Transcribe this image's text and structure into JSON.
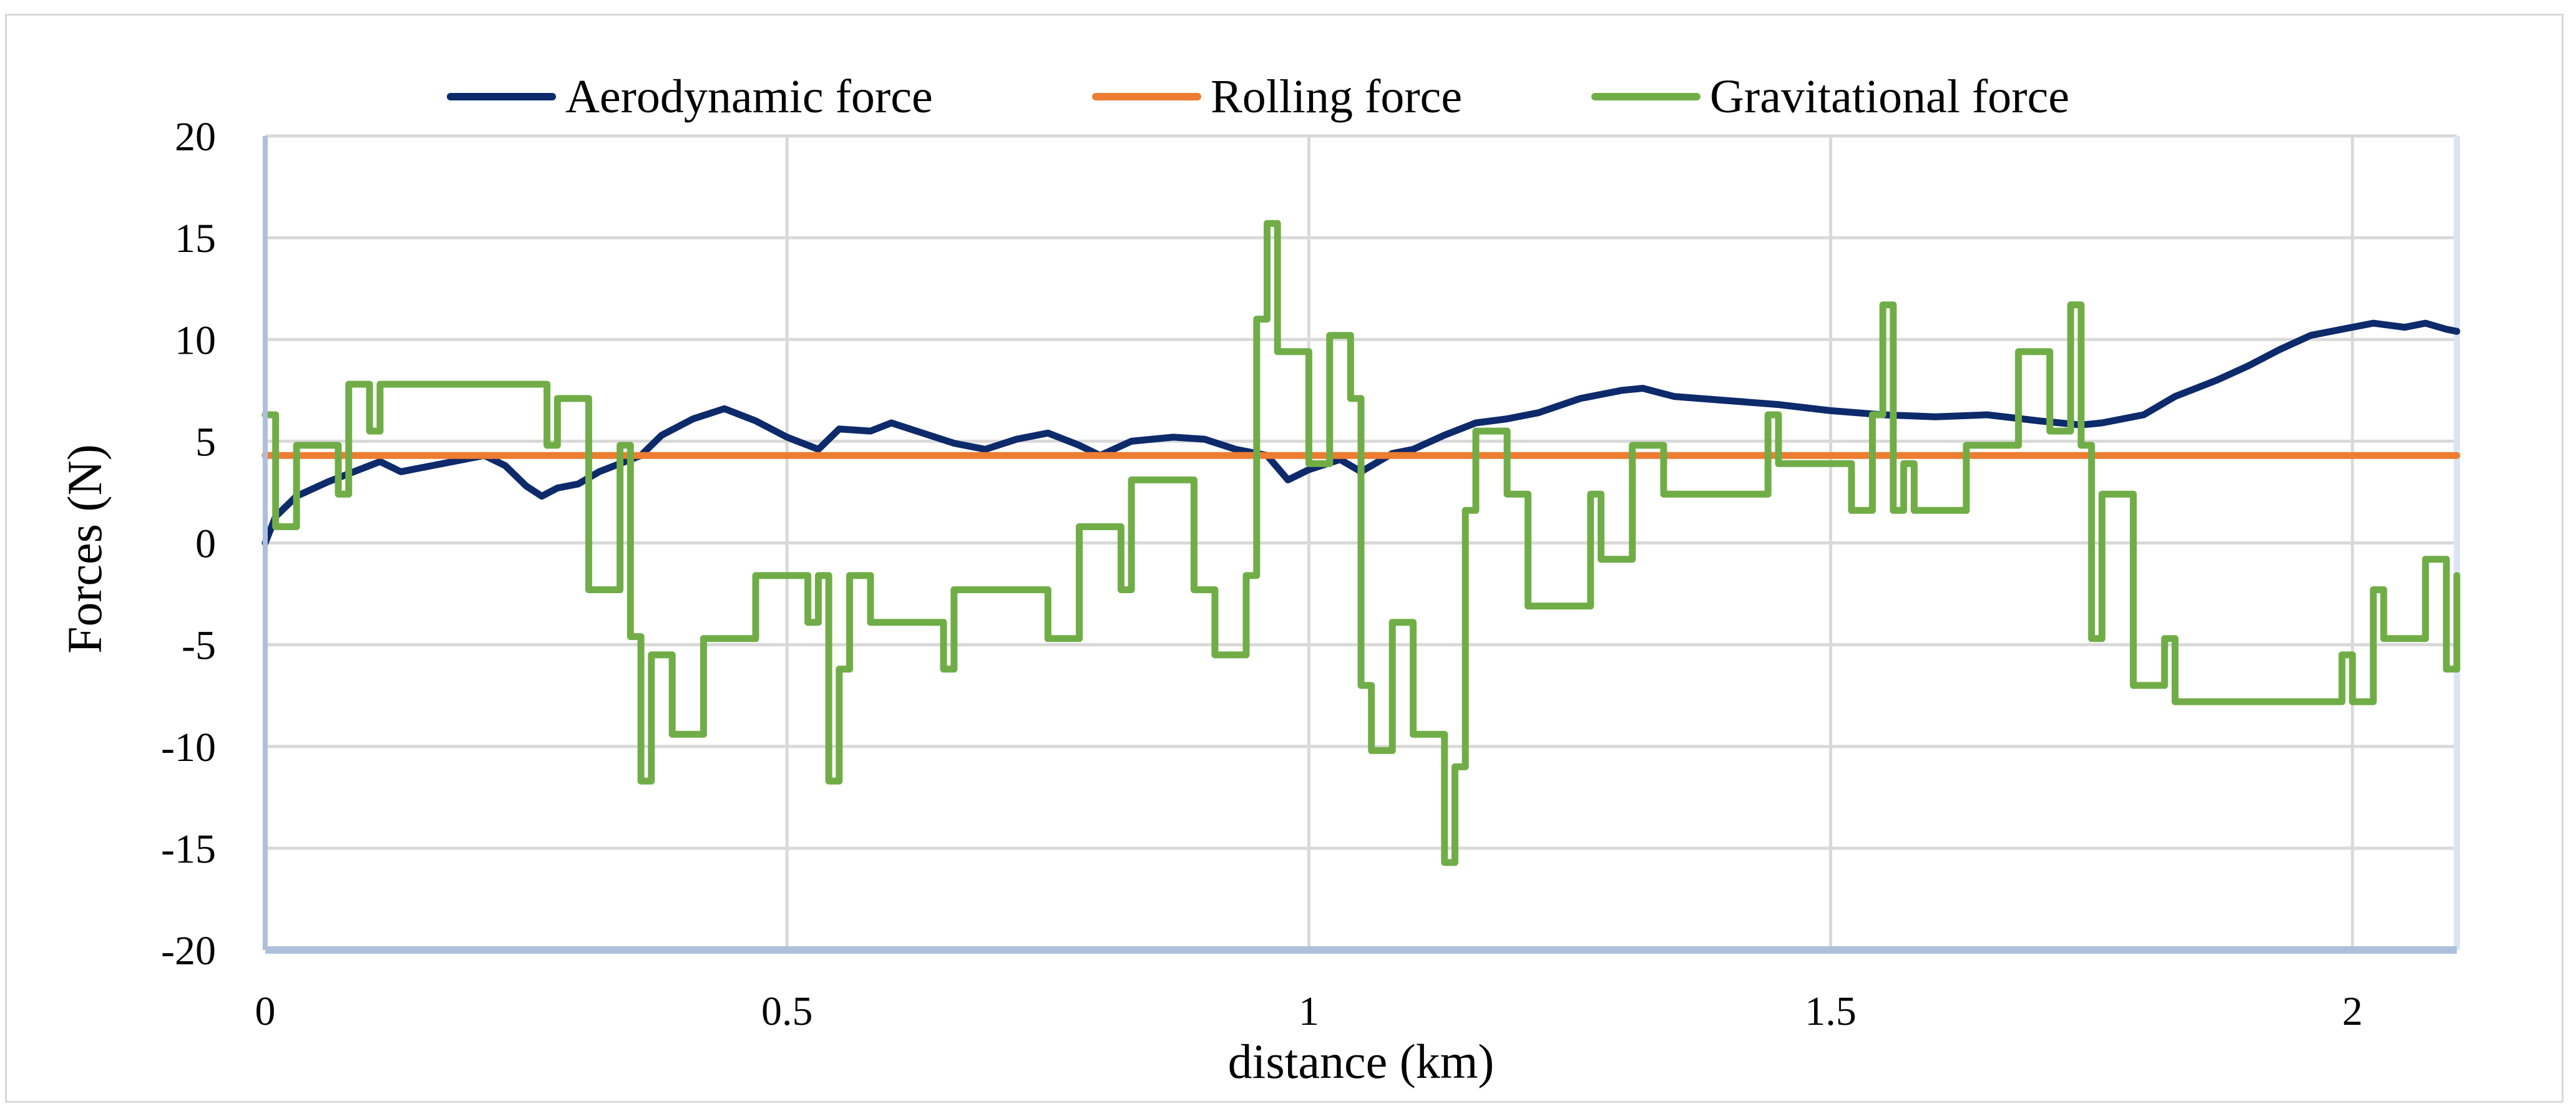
{
  "chart_data": {
    "type": "line",
    "xlabel": "distance (km)",
    "ylabel": "Forces (N)",
    "xlim": [
      0,
      2.1
    ],
    "ylim": [
      -20,
      20
    ],
    "x_ticks": [
      0,
      0.5,
      1,
      1.5,
      2
    ],
    "x_tick_labels": [
      "0",
      "0.5",
      "1",
      "1.5",
      "2"
    ],
    "y_ticks": [
      -20,
      -15,
      -10,
      -5,
      0,
      5,
      10,
      15,
      20
    ],
    "y_tick_labels": [
      "-20",
      "-15",
      "-10",
      "-5",
      "0",
      "5",
      "10",
      "15",
      "20"
    ],
    "grid": true,
    "legend_position": "top",
    "series": [
      {
        "name": "Aerodynamic force",
        "color": "#0d2a6b",
        "step": false,
        "points": [
          [
            0,
            0
          ],
          [
            0.01,
            1.3
          ],
          [
            0.03,
            2.3
          ],
          [
            0.06,
            3.0
          ],
          [
            0.09,
            3.6
          ],
          [
            0.11,
            4.0
          ],
          [
            0.13,
            3.5
          ],
          [
            0.16,
            3.8
          ],
          [
            0.19,
            4.1
          ],
          [
            0.21,
            4.3
          ],
          [
            0.23,
            3.8
          ],
          [
            0.25,
            2.8
          ],
          [
            0.265,
            2.3
          ],
          [
            0.28,
            2.7
          ],
          [
            0.3,
            2.9
          ],
          [
            0.32,
            3.5
          ],
          [
            0.34,
            3.9
          ],
          [
            0.36,
            4.3
          ],
          [
            0.38,
            5.3
          ],
          [
            0.41,
            6.1
          ],
          [
            0.44,
            6.6
          ],
          [
            0.47,
            6.0
          ],
          [
            0.5,
            5.2
          ],
          [
            0.53,
            4.6
          ],
          [
            0.55,
            5.6
          ],
          [
            0.58,
            5.5
          ],
          [
            0.6,
            5.9
          ],
          [
            0.63,
            5.4
          ],
          [
            0.66,
            4.9
          ],
          [
            0.69,
            4.6
          ],
          [
            0.72,
            5.1
          ],
          [
            0.75,
            5.4
          ],
          [
            0.78,
            4.8
          ],
          [
            0.8,
            4.3
          ],
          [
            0.83,
            5.0
          ],
          [
            0.87,
            5.2
          ],
          [
            0.9,
            5.1
          ],
          [
            0.93,
            4.6
          ],
          [
            0.96,
            4.3
          ],
          [
            0.98,
            3.1
          ],
          [
            1.0,
            3.6
          ],
          [
            1.03,
            4.1
          ],
          [
            1.05,
            3.5
          ],
          [
            1.08,
            4.4
          ],
          [
            1.1,
            4.6
          ],
          [
            1.13,
            5.3
          ],
          [
            1.16,
            5.9
          ],
          [
            1.19,
            6.1
          ],
          [
            1.22,
            6.4
          ],
          [
            1.26,
            7.1
          ],
          [
            1.3,
            7.5
          ],
          [
            1.32,
            7.6
          ],
          [
            1.35,
            7.2
          ],
          [
            1.4,
            7.0
          ],
          [
            1.45,
            6.8
          ],
          [
            1.5,
            6.5
          ],
          [
            1.55,
            6.3
          ],
          [
            1.6,
            6.2
          ],
          [
            1.65,
            6.3
          ],
          [
            1.7,
            6.0
          ],
          [
            1.74,
            5.8
          ],
          [
            1.76,
            5.9
          ],
          [
            1.8,
            6.3
          ],
          [
            1.83,
            7.2
          ],
          [
            1.87,
            8.0
          ],
          [
            1.9,
            8.7
          ],
          [
            1.93,
            9.5
          ],
          [
            1.96,
            10.2
          ],
          [
            1.99,
            10.5
          ],
          [
            2.02,
            10.8
          ],
          [
            2.05,
            10.6
          ],
          [
            2.07,
            10.8
          ],
          [
            2.09,
            10.5
          ],
          [
            2.1,
            10.4
          ]
        ]
      },
      {
        "name": "Rolling force",
        "color": "#ed7d31",
        "step": false,
        "points": [
          [
            0,
            4.3
          ],
          [
            2.1,
            4.3
          ]
        ]
      },
      {
        "name": "Gravitational force",
        "color": "#70ad47",
        "step": true,
        "points": [
          [
            0,
            6.3
          ],
          [
            0.01,
            0.8
          ],
          [
            0.03,
            4.8
          ],
          [
            0.07,
            2.4
          ],
          [
            0.08,
            7.8
          ],
          [
            0.1,
            5.5
          ],
          [
            0.11,
            7.8
          ],
          [
            0.27,
            4.8
          ],
          [
            0.28,
            7.1
          ],
          [
            0.31,
            -2.3
          ],
          [
            0.34,
            4.8
          ],
          [
            0.35,
            -4.6
          ],
          [
            0.36,
            -11.7
          ],
          [
            0.37,
            -5.5
          ],
          [
            0.39,
            -9.4
          ],
          [
            0.42,
            -4.7
          ],
          [
            0.47,
            -1.6
          ],
          [
            0.52,
            -3.9
          ],
          [
            0.53,
            -1.6
          ],
          [
            0.54,
            -11.7
          ],
          [
            0.55,
            -6.2
          ],
          [
            0.56,
            -1.6
          ],
          [
            0.58,
            -3.9
          ],
          [
            0.65,
            -6.2
          ],
          [
            0.66,
            -2.3
          ],
          [
            0.75,
            -4.7
          ],
          [
            0.78,
            0.8
          ],
          [
            0.82,
            -2.3
          ],
          [
            0.83,
            3.1
          ],
          [
            0.89,
            -2.3
          ],
          [
            0.91,
            -5.5
          ],
          [
            0.94,
            -1.6
          ],
          [
            0.95,
            11.0
          ],
          [
            0.96,
            15.7
          ],
          [
            0.97,
            9.4
          ],
          [
            1.0,
            3.9
          ],
          [
            1.02,
            10.2
          ],
          [
            1.04,
            7.1
          ],
          [
            1.05,
            -7.0
          ],
          [
            1.06,
            -10.2
          ],
          [
            1.08,
            -3.9
          ],
          [
            1.1,
            -9.4
          ],
          [
            1.13,
            -15.7
          ],
          [
            1.14,
            -11.0
          ],
          [
            1.15,
            1.6
          ],
          [
            1.16,
            5.5
          ],
          [
            1.19,
            2.4
          ],
          [
            1.21,
            -3.1
          ],
          [
            1.27,
            2.4
          ],
          [
            1.28,
            -0.8
          ],
          [
            1.31,
            4.8
          ],
          [
            1.34,
            2.4
          ],
          [
            1.44,
            6.3
          ],
          [
            1.45,
            3.9
          ],
          [
            1.52,
            1.6
          ],
          [
            1.54,
            6.3
          ],
          [
            1.55,
            11.7
          ],
          [
            1.56,
            1.6
          ],
          [
            1.57,
            3.9
          ],
          [
            1.58,
            1.6
          ],
          [
            1.63,
            4.8
          ],
          [
            1.68,
            9.4
          ],
          [
            1.71,
            5.5
          ],
          [
            1.73,
            11.7
          ],
          [
            1.74,
            4.8
          ],
          [
            1.75,
            -4.7
          ],
          [
            1.76,
            2.4
          ],
          [
            1.79,
            -7.0
          ],
          [
            1.82,
            -4.7
          ],
          [
            1.83,
            -7.8
          ],
          [
            1.99,
            -5.5
          ],
          [
            2.0,
            -7.8
          ],
          [
            2.02,
            -2.3
          ],
          [
            2.03,
            -4.7
          ],
          [
            2.07,
            -0.8
          ],
          [
            2.09,
            -6.2
          ],
          [
            2.1,
            -1.6
          ]
        ]
      }
    ]
  }
}
